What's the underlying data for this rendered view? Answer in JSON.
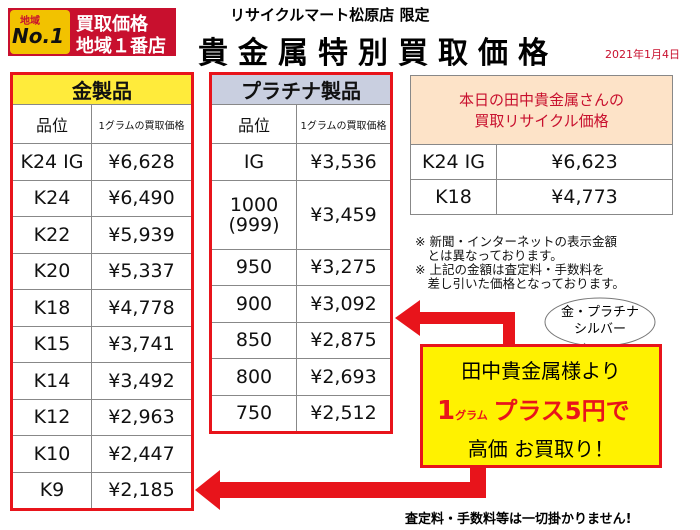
{
  "badge": {
    "region": "地域",
    "rank": "No.1",
    "line1": "買取価格",
    "line2": "地域１番店"
  },
  "header": {
    "store": "リサイクルマート松原店 限定",
    "title": "貴金属特別買取価格",
    "date": "2021年1月4日"
  },
  "gold": {
    "title": "金製品",
    "columns": [
      "品位",
      "1グラムの買取価格"
    ],
    "rows": [
      [
        "K24 IG",
        "¥6,628"
      ],
      [
        "K24",
        "¥6,490"
      ],
      [
        "K22",
        "¥5,939"
      ],
      [
        "K20",
        "¥5,337"
      ],
      [
        "K18",
        "¥4,778"
      ],
      [
        "K15",
        "¥3,741"
      ],
      [
        "K14",
        "¥3,492"
      ],
      [
        "K12",
        "¥2,963"
      ],
      [
        "K10",
        "¥2,447"
      ],
      [
        "K9",
        "¥2,185"
      ]
    ]
  },
  "platinum": {
    "title": "プラチナ製品",
    "columns": [
      "品位",
      "1グラムの買取価格"
    ],
    "rows": [
      [
        "IG",
        "¥3,536"
      ],
      [
        "1000\n(999)",
        "¥3,459"
      ],
      [
        "950",
        "¥3,275"
      ],
      [
        "900",
        "¥3,092"
      ],
      [
        "850",
        "¥2,875"
      ],
      [
        "800",
        "¥2,693"
      ],
      [
        "750",
        "¥2,512"
      ]
    ]
  },
  "tanaka": {
    "title": "本日の田中貴金属さんの\n買取リサイクル価格",
    "rows": [
      [
        "K24 IG",
        "¥6,623"
      ],
      [
        "K18",
        "¥4,773"
      ]
    ]
  },
  "notes": [
    "※ 新聞・インターネットの表示金額\n　とは異なっております。",
    "※ 上記の金額は査定料・手数料を\n　差し引いた価格となっております。"
  ],
  "bubble": "金・プラチナ\nシルバー",
  "promo": {
    "line1": "田中貴金属様より",
    "one": "1",
    "unit": "グラム",
    "plus": "プラス5円で",
    "line3": "高価 お買取り！"
  },
  "footer": "査定料・手数料等は一切掛かりません!"
}
